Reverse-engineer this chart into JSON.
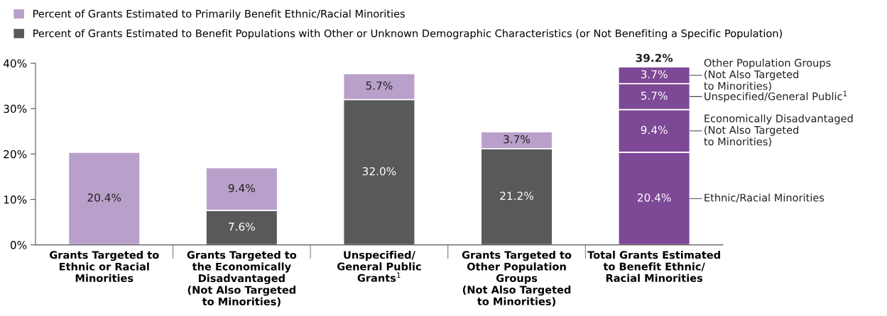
{
  "chart_data": {
    "type": "bar",
    "stacked": true,
    "legend": "top left",
    "categories": [
      "Grants Targeted to\nEthnic or Racial\nMinorities",
      "Grants Targeted to\nthe Economically\nDisadvantaged\n(Not Also Targeted\nto Minorities)",
      "Unspecified/\nGeneral Public\nGrants$^{1}$",
      "Grants Targeted to\nOther Population\nGroups\n(Not Also Targeted\nto Minorities)",
      "Total Grants Estimated\nto Benefit Ethnic/\nRacial Minorities"
    ],
    "series": [
      {
        "name": "Percent of Grants Estimated to Benefit Populations with Other or Unknown Demographic Characteristics (or Not Benefiting a Specific Population)",
        "color": "#58595b",
        "values": [
          null,
          7.6,
          32.0,
          21.2,
          null
        ],
        "value_labels": [
          null,
          "7.6%",
          "32.0%",
          "21.2%",
          null
        ]
      },
      {
        "name": "Percent of Grants Estimated to Primarily Benefit Ethnic/Racial Minorities",
        "color": "#b9a0cb",
        "values": [
          20.4,
          9.4,
          5.7,
          3.7,
          null
        ],
        "value_labels": [
          "20.4%",
          "9.4%",
          "5.7%",
          "3.7%",
          null
        ]
      },
      {
        "name": "Ethnic/Racial Minorities",
        "color": "#7d4895",
        "values": [
          null,
          null,
          null,
          null,
          20.4
        ],
        "value_labels": [
          null,
          null,
          null,
          null,
          "20.4%"
        ]
      },
      {
        "name": "Economically Disadvantaged\n(Not Also Targeted\nto Minorities)",
        "color": "#7d4895",
        "values": [
          null,
          null,
          null,
          null,
          9.4
        ],
        "value_labels": [
          null,
          null,
          null,
          null,
          "9.4%"
        ]
      },
      {
        "name": "Unspecified/General Public$^{1}$",
        "color": "#7d4895",
        "values": [
          null,
          null,
          null,
          null,
          5.7
        ],
        "value_labels": [
          null,
          null,
          null,
          null,
          "5.7%"
        ]
      },
      {
        "name": "Other Population Groups\n(Not Also Targeted\nto Minorities)",
        "color": "#7d4895",
        "values": [
          null,
          null,
          null,
          null,
          3.7
        ],
        "value_labels": [
          null,
          null,
          null,
          null,
          "3.7%"
        ]
      }
    ],
    "totals": [
      null,
      null,
      null,
      null,
      "39.2%"
    ],
    "ylim": [
      0,
      40
    ],
    "yticks": [
      {
        "value": 0,
        "label": "0%"
      },
      {
        "value": 10,
        "label": "10%"
      },
      {
        "value": 20,
        "label": "20%"
      },
      {
        "value": 30,
        "label": "30%"
      },
      {
        "value": 40,
        "label": "40%"
      }
    ],
    "grid": false
  }
}
